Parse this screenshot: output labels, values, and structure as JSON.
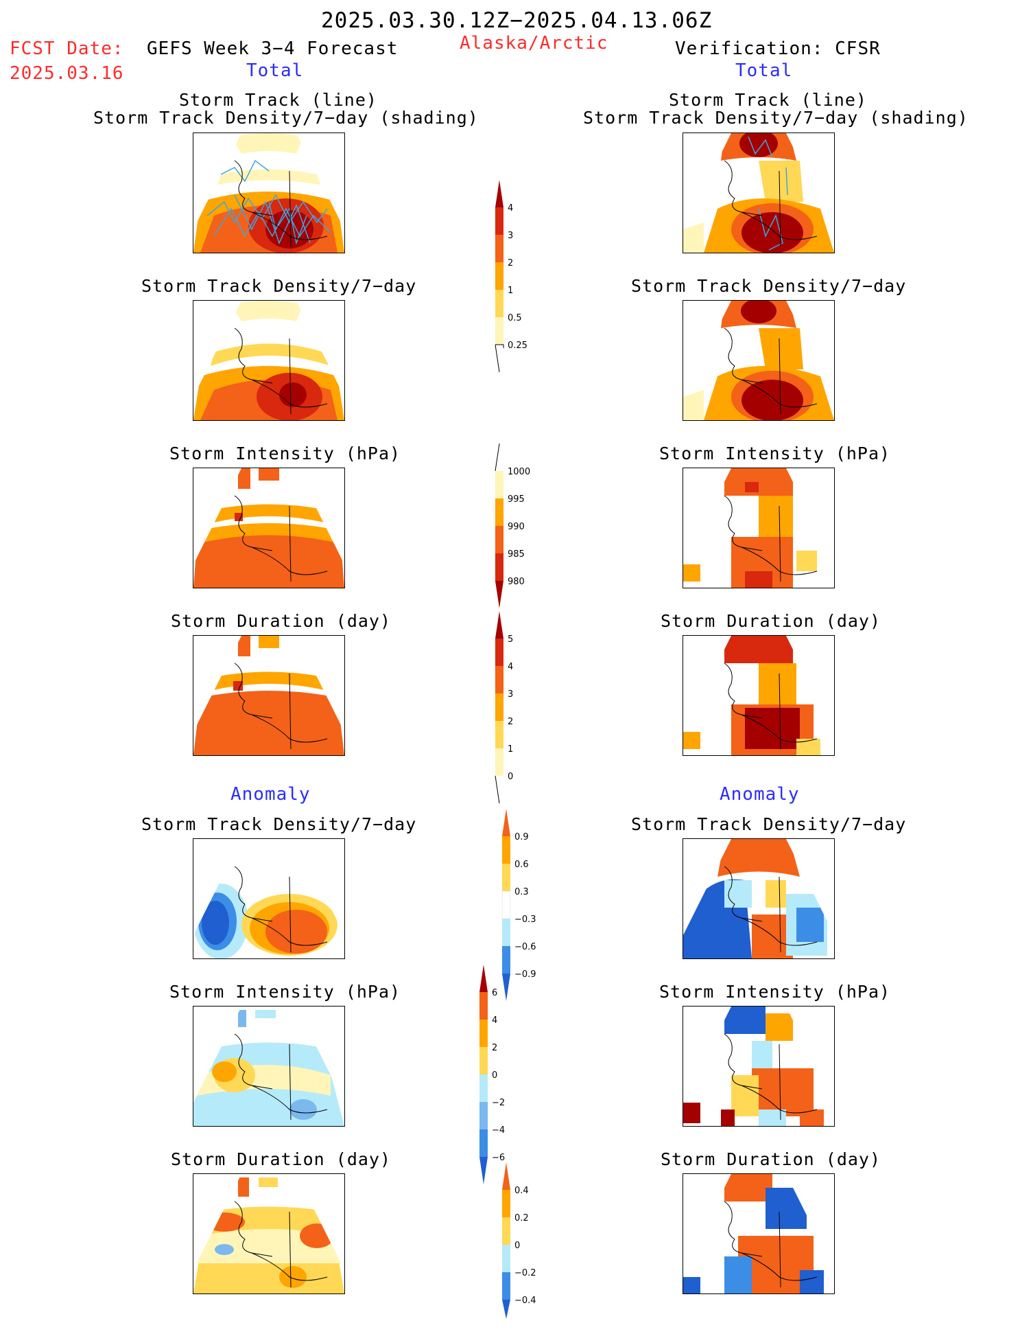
{
  "header": {
    "period": "2025.03.30.12Z−2025.04.13.06Z",
    "fcst_label": "FCST Date:",
    "fcst_date": "2025.03.16",
    "model": "GEFS Week 3−4 Forecast",
    "region": "Alaska/Arctic",
    "verification": "Verification: CFSR"
  },
  "sections": {
    "total": "Total",
    "anomaly": "Anomaly"
  },
  "panel_titles": {
    "track_line": "Storm Track (line)",
    "track_shading": "Storm Track Density/7−day (shading)",
    "density": "Storm Track Density/7−day",
    "intensity": "Storm Intensity (hPa)",
    "duration": "Storm Duration (day)"
  },
  "colorbars": {
    "density_total": [
      "4",
      "3",
      "2",
      "1",
      "0.5",
      "0.25"
    ],
    "intensity_total": [
      "1000",
      "995",
      "990",
      "985",
      "980"
    ],
    "duration_total": [
      "5",
      "4",
      "3",
      "2",
      "1",
      "0"
    ],
    "density_anom": [
      "0.9",
      "0.6",
      "0.3",
      "−0.3",
      "−0.6",
      "−0.9"
    ],
    "intensity_anom": [
      "6",
      "4",
      "2",
      "0",
      "−2",
      "−4",
      "−6"
    ],
    "duration_anom": [
      "0.4",
      "0.2",
      "0",
      "−0.2",
      "−0.4"
    ]
  },
  "colors": {
    "lightyellow": "#fff5b8",
    "yellow": "#ffd855",
    "orange": "#ffa500",
    "darkorange": "#f36218",
    "red": "#d8280e",
    "darkred": "#a50000",
    "lightblue": "#b5eafa",
    "midblue": "#7ab8ee",
    "blue": "#3c8de6",
    "darkblue": "#1f5fd0",
    "track": "#3ea6e0"
  }
}
